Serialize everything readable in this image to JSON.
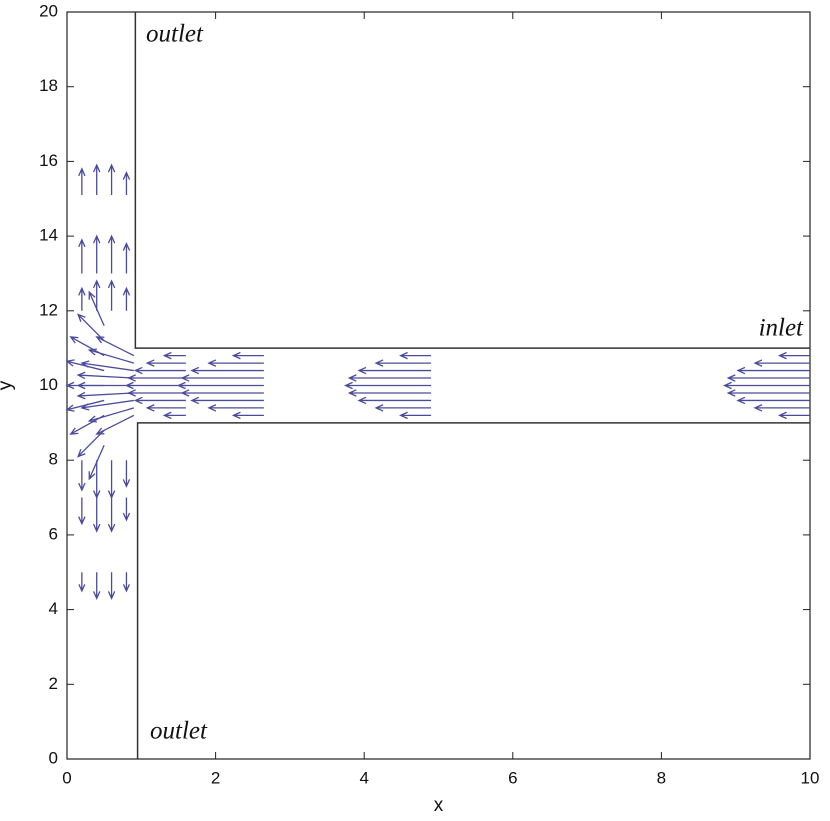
{
  "chart_data": {
    "type": "quiver",
    "xlabel": "x",
    "ylabel": "y",
    "annotations": [
      "outlet",
      "outlet",
      "inlet"
    ],
    "xlim": [
      0,
      10
    ],
    "ylim": [
      0,
      20
    ],
    "xticks": [
      0,
      2,
      4,
      6,
      8,
      10
    ],
    "yticks": [
      0,
      2,
      4,
      6,
      8,
      10,
      12,
      14,
      16,
      18,
      20
    ],
    "color": "#4b4b9c",
    "wall_color": "#333333",
    "walls": [
      {
        "x": [
          0.92,
          0.92,
          10
        ],
        "y": [
          20,
          11,
          11
        ]
      },
      {
        "x": [
          0.95,
          0.95,
          10
        ],
        "y": [
          0,
          9,
          9
        ]
      }
    ],
    "x": [
      10,
      10,
      10,
      10,
      10,
      10,
      10,
      10,
      10,
      4.9,
      4.9,
      4.9,
      4.9,
      4.9,
      4.9,
      4.9,
      4.9,
      4.9,
      2.65,
      2.65,
      2.65,
      2.65,
      2.65,
      2.65,
      2.65,
      2.65,
      2.65,
      1.6,
      1.6,
      1.6,
      1.6,
      1.6,
      1.6,
      1.6,
      1.6,
      1.6,
      0.9,
      0.9,
      0.9,
      0.9,
      0.9,
      0.9,
      0.9,
      0.9,
      0.9,
      0.5,
      0.5,
      0.5,
      0.5,
      0.5,
      0.5,
      0.5,
      0.5,
      0.5,
      0.2,
      0.4,
      0.6,
      0.8,
      0.2,
      0.4,
      0.6,
      0.8,
      0.2,
      0.4,
      0.6,
      0.8,
      0.2,
      0.4,
      0.6,
      0.8,
      0.2,
      0.4,
      0.6,
      0.8,
      0.2,
      0.4,
      0.6,
      0.8
    ],
    "y": [
      9.2,
      9.4,
      9.6,
      9.8,
      10,
      10.2,
      10.4,
      10.6,
      10.8,
      9.2,
      9.4,
      9.6,
      9.8,
      10,
      10.2,
      10.4,
      10.6,
      10.8,
      9.2,
      9.4,
      9.6,
      9.8,
      10,
      10.2,
      10.4,
      10.6,
      10.8,
      9.2,
      9.4,
      9.6,
      9.8,
      10,
      10.2,
      10.4,
      10.6,
      10.8,
      9.2,
      9.4,
      9.6,
      9.8,
      10,
      10.2,
      10.4,
      10.6,
      10.8,
      8.4,
      8.8,
      9.2,
      9.6,
      10,
      10.4,
      10.8,
      11.2,
      11.6,
      15.1,
      15.1,
      15.1,
      15.1,
      13,
      13,
      13,
      13,
      12,
      12,
      12,
      12,
      8,
      8,
      8,
      8,
      7,
      7,
      7,
      7,
      5,
      5,
      5,
      5
    ],
    "u": [
      -0.41,
      -0.74,
      -0.97,
      -1.1,
      -1.15,
      -1.1,
      -0.97,
      -0.74,
      -0.41,
      -0.41,
      -0.74,
      -0.97,
      -1.1,
      -1.15,
      -1.1,
      -0.97,
      -0.74,
      -0.41,
      -0.41,
      -0.74,
      -0.97,
      -1.1,
      -1.15,
      -1.1,
      -0.97,
      -0.74,
      -0.41,
      -0.29,
      -0.52,
      -0.68,
      -0.77,
      -0.8,
      -0.77,
      -0.68,
      -0.52,
      -0.29,
      -0.5,
      -0.6,
      -0.7,
      -0.75,
      -0.75,
      -0.75,
      -0.7,
      -0.6,
      -0.5,
      -0.2,
      -0.35,
      -0.45,
      -0.5,
      -0.5,
      -0.5,
      -0.45,
      -0.35,
      -0.2,
      0,
      0,
      0,
      0,
      0,
      0,
      0,
      0,
      0,
      0,
      0,
      0,
      0,
      0,
      0,
      0,
      0,
      0,
      0,
      0,
      0,
      0,
      0,
      0
    ],
    "v": [
      0,
      0,
      0,
      0,
      0,
      0,
      0,
      0,
      0,
      0,
      0,
      0,
      0,
      0,
      0,
      0,
      0,
      0,
      0,
      0,
      0,
      0,
      0,
      0,
      0,
      0,
      0,
      0,
      0,
      0,
      0,
      0,
      0,
      0,
      0,
      0,
      -0.5,
      -0.35,
      -0.2,
      -0.08,
      0,
      0.08,
      0.2,
      0.35,
      0.5,
      -0.9,
      -0.7,
      -0.5,
      -0.25,
      0,
      0.25,
      0.5,
      0.7,
      0.9,
      0.7,
      0.8,
      0.8,
      0.6,
      0.9,
      1.0,
      1.0,
      0.8,
      0.6,
      0.8,
      0.8,
      0.6,
      -0.8,
      -1.0,
      -1.0,
      -0.7,
      -0.7,
      -0.9,
      -0.9,
      -0.6,
      -0.5,
      -0.7,
      -0.7,
      -0.5
    ]
  }
}
